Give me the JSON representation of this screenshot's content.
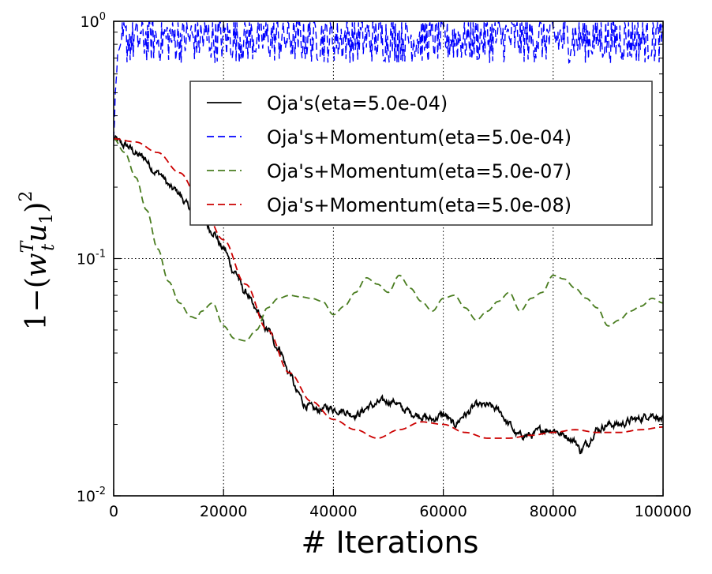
{
  "chart_data": {
    "type": "line",
    "xlabel": "# Iterations",
    "ylabel_parts": {
      "prefix": "1",
      "minus": "−",
      "open": "(",
      "w": "w",
      "w_sup": "T",
      "w_sub": "t",
      "u": "u",
      "u_sub": "1",
      "close": ")",
      "exp": "2"
    },
    "x_ticks": [
      "0",
      "20000",
      "40000",
      "60000",
      "80000",
      "100000"
    ],
    "x_tick_values": [
      0,
      20000,
      40000,
      60000,
      80000,
      100000
    ],
    "y_ticks": [
      {
        "value": 1,
        "base": "10",
        "exp": "0"
      },
      {
        "value": 0.1,
        "base": "10",
        "exp": "-1"
      },
      {
        "value": 0.01,
        "base": "10",
        "exp": "-2"
      }
    ],
    "xlim": [
      0,
      100000
    ],
    "ylim": [
      0.01,
      1
    ],
    "yscale": "log",
    "grid": true,
    "legend_position": "upper-right",
    "series": [
      {
        "name": "Oja's(eta=5.0e-04)",
        "color": "#000000",
        "dash": "solid",
        "noise": 0.012,
        "x": [
          0,
          2000,
          5000,
          8000,
          11000,
          14000,
          16000,
          18000,
          20000,
          22000,
          24000,
          26000,
          28000,
          30000,
          32000,
          33500,
          35000,
          37000,
          39000,
          41000,
          44000,
          47000,
          49000,
          51000,
          53000,
          55000,
          58000,
          60000,
          62000,
          64000,
          66000,
          68000,
          70000,
          72000,
          73500,
          76000,
          78000,
          80000,
          82000,
          84000,
          85000,
          86000,
          88000,
          90000,
          92000,
          95000,
          98000,
          100000
        ],
        "y": [
          0.32,
          0.3,
          0.27,
          0.23,
          0.195,
          0.165,
          0.15,
          0.13,
          0.11,
          0.088,
          0.072,
          0.06,
          0.05,
          0.042,
          0.033,
          0.027,
          0.024,
          0.023,
          0.0235,
          0.023,
          0.022,
          0.024,
          0.025,
          0.025,
          0.023,
          0.022,
          0.021,
          0.022,
          0.02,
          0.022,
          0.024,
          0.024,
          0.023,
          0.02,
          0.018,
          0.018,
          0.019,
          0.019,
          0.018,
          0.017,
          0.0155,
          0.0165,
          0.019,
          0.02,
          0.02,
          0.021,
          0.022,
          0.021
        ]
      },
      {
        "name": "Oja's+Momentum(eta=5.0e-04)",
        "color": "#0000ff",
        "dash": "dashed",
        "noise": 0.11,
        "x": [
          0,
          400,
          800,
          1500,
          3000,
          5000,
          10000,
          20000,
          30000,
          40000,
          50000,
          60000,
          70000,
          80000,
          90000,
          100000
        ],
        "y": [
          0.32,
          0.55,
          0.75,
          0.82,
          0.84,
          0.85,
          0.85,
          0.85,
          0.85,
          0.85,
          0.85,
          0.85,
          0.85,
          0.85,
          0.85,
          0.85
        ]
      },
      {
        "name": "Oja's+Momentum(eta=5.0e-07)",
        "color": "#4a7d20",
        "dash": "dashed",
        "noise": 0,
        "x": [
          0,
          2000,
          4000,
          6000,
          8000,
          10000,
          12000,
          14000,
          15000,
          16000,
          18000,
          20000,
          22000,
          24000,
          26000,
          28000,
          30000,
          32000,
          34000,
          36000,
          38000,
          40000,
          42000,
          44000,
          46000,
          48000,
          50000,
          52000,
          54000,
          56000,
          58000,
          60000,
          62000,
          64000,
          66000,
          68000,
          70000,
          72000,
          74000,
          76000,
          78000,
          80000,
          82000,
          84000,
          86000,
          88000,
          90000,
          92000,
          94000,
          96000,
          98000,
          100000
        ],
        "y": [
          0.32,
          0.28,
          0.22,
          0.16,
          0.11,
          0.08,
          0.065,
          0.057,
          0.056,
          0.06,
          0.065,
          0.052,
          0.046,
          0.045,
          0.05,
          0.062,
          0.068,
          0.07,
          0.069,
          0.068,
          0.066,
          0.058,
          0.063,
          0.072,
          0.083,
          0.078,
          0.072,
          0.085,
          0.075,
          0.066,
          0.06,
          0.068,
          0.07,
          0.062,
          0.055,
          0.06,
          0.066,
          0.072,
          0.06,
          0.068,
          0.072,
          0.085,
          0.082,
          0.075,
          0.068,
          0.062,
          0.052,
          0.055,
          0.06,
          0.063,
          0.068,
          0.065
        ]
      },
      {
        "name": "Oja's+Momentum(eta=5.0e-08)",
        "color": "#cc0000",
        "dash": "dashed",
        "noise": 0,
        "x": [
          0,
          4000,
          8000,
          12000,
          16000,
          20000,
          24000,
          28000,
          32000,
          36000,
          40000,
          44000,
          48000,
          52000,
          56000,
          60000,
          64000,
          68000,
          72000,
          76000,
          80000,
          84000,
          88000,
          92000,
          96000,
          100000
        ],
        "y": [
          0.32,
          0.31,
          0.28,
          0.23,
          0.17,
          0.12,
          0.078,
          0.05,
          0.033,
          0.025,
          0.021,
          0.019,
          0.0175,
          0.019,
          0.0205,
          0.02,
          0.0185,
          0.0175,
          0.0175,
          0.018,
          0.0185,
          0.019,
          0.0185,
          0.0185,
          0.019,
          0.0195
        ]
      }
    ]
  }
}
